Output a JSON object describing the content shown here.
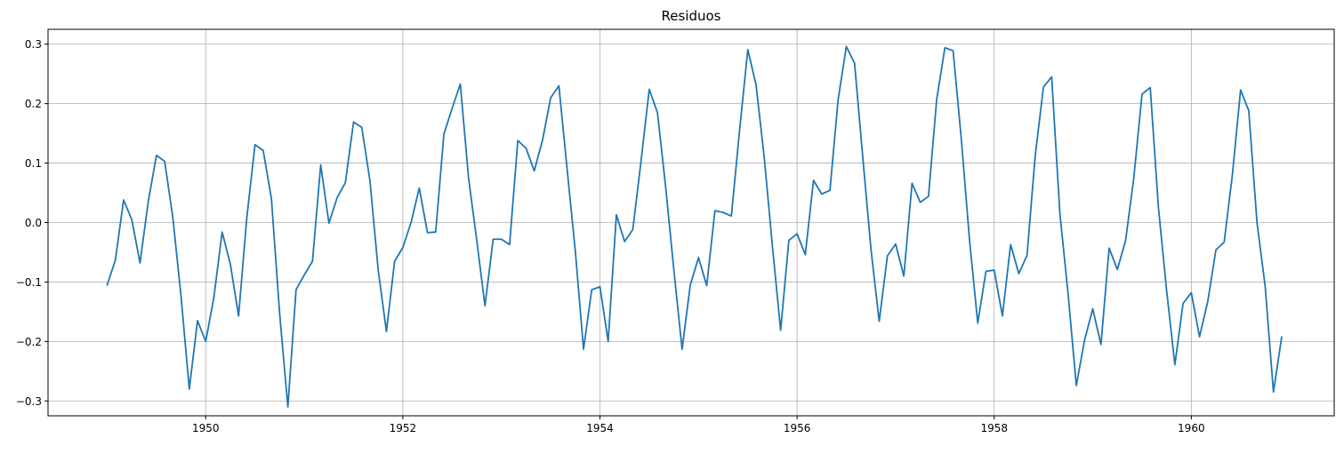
{
  "chart_data": {
    "type": "line",
    "title": "Residuos",
    "xlabel": "",
    "ylabel": "",
    "xlim": [
      1948.4,
      1961.45
    ],
    "ylim": [
      -0.325,
      0.325
    ],
    "xticks": [
      1950,
      1952,
      1954,
      1956,
      1958,
      1960
    ],
    "xtick_labels": [
      "1950",
      "1952",
      "1954",
      "1956",
      "1958",
      "1960"
    ],
    "yticks": [
      -0.3,
      -0.2,
      -0.1,
      0.0,
      0.1,
      0.2,
      0.3
    ],
    "ytick_labels": [
      "−0.3",
      "−0.2",
      "−0.1",
      "0.0",
      "0.1",
      "0.2",
      "0.3"
    ],
    "grid": true,
    "color": "#1f77b4",
    "series": [
      {
        "x_start": 1949.0,
        "x_step": 0.083333,
        "values": [
          -0.105,
          -0.063,
          0.038,
          0.005,
          -0.068,
          0.035,
          0.113,
          0.103,
          0.008,
          -0.125,
          -0.28,
          -0.165,
          -0.2,
          -0.125,
          -0.016,
          -0.07,
          -0.157,
          0.008,
          0.131,
          0.121,
          0.04,
          -0.153,
          -0.31,
          -0.113,
          -0.088,
          -0.065,
          0.097,
          -0.001,
          0.042,
          0.067,
          0.169,
          0.16,
          0.07,
          -0.08,
          -0.183,
          -0.065,
          -0.042,
          0.0,
          0.058,
          -0.017,
          -0.016,
          0.149,
          0.192,
          0.233,
          0.075,
          -0.03,
          -0.14,
          -0.028,
          -0.028,
          -0.037,
          0.138,
          0.125,
          0.087,
          0.138,
          0.21,
          0.23,
          0.09,
          -0.048,
          -0.213,
          -0.113,
          -0.108,
          -0.2,
          0.013,
          -0.032,
          -0.012,
          0.103,
          0.224,
          0.185,
          0.06,
          -0.08,
          -0.213,
          -0.105,
          -0.059,
          -0.106,
          0.02,
          0.017,
          0.011,
          0.155,
          0.291,
          0.232,
          0.11,
          -0.04,
          -0.181,
          -0.03,
          -0.019,
          -0.054,
          0.071,
          0.048,
          0.054,
          0.207,
          0.296,
          0.268,
          0.11,
          -0.045,
          -0.166,
          -0.056,
          -0.036,
          -0.09,
          0.066,
          0.034,
          0.044,
          0.207,
          0.294,
          0.289,
          0.14,
          -0.03,
          -0.169,
          -0.082,
          -0.08,
          -0.157,
          -0.037,
          -0.086,
          -0.055,
          0.113,
          0.228,
          0.245,
          0.015,
          -0.12,
          -0.274,
          -0.198,
          -0.145,
          -0.205,
          -0.043,
          -0.079,
          -0.03,
          0.075,
          0.216,
          0.227,
          0.025,
          -0.115,
          -0.239,
          -0.136,
          -0.118,
          -0.192,
          -0.133,
          -0.046,
          -0.033,
          0.08,
          0.223,
          0.188,
          0.0,
          -0.108,
          -0.285,
          -0.193
        ]
      }
    ]
  }
}
